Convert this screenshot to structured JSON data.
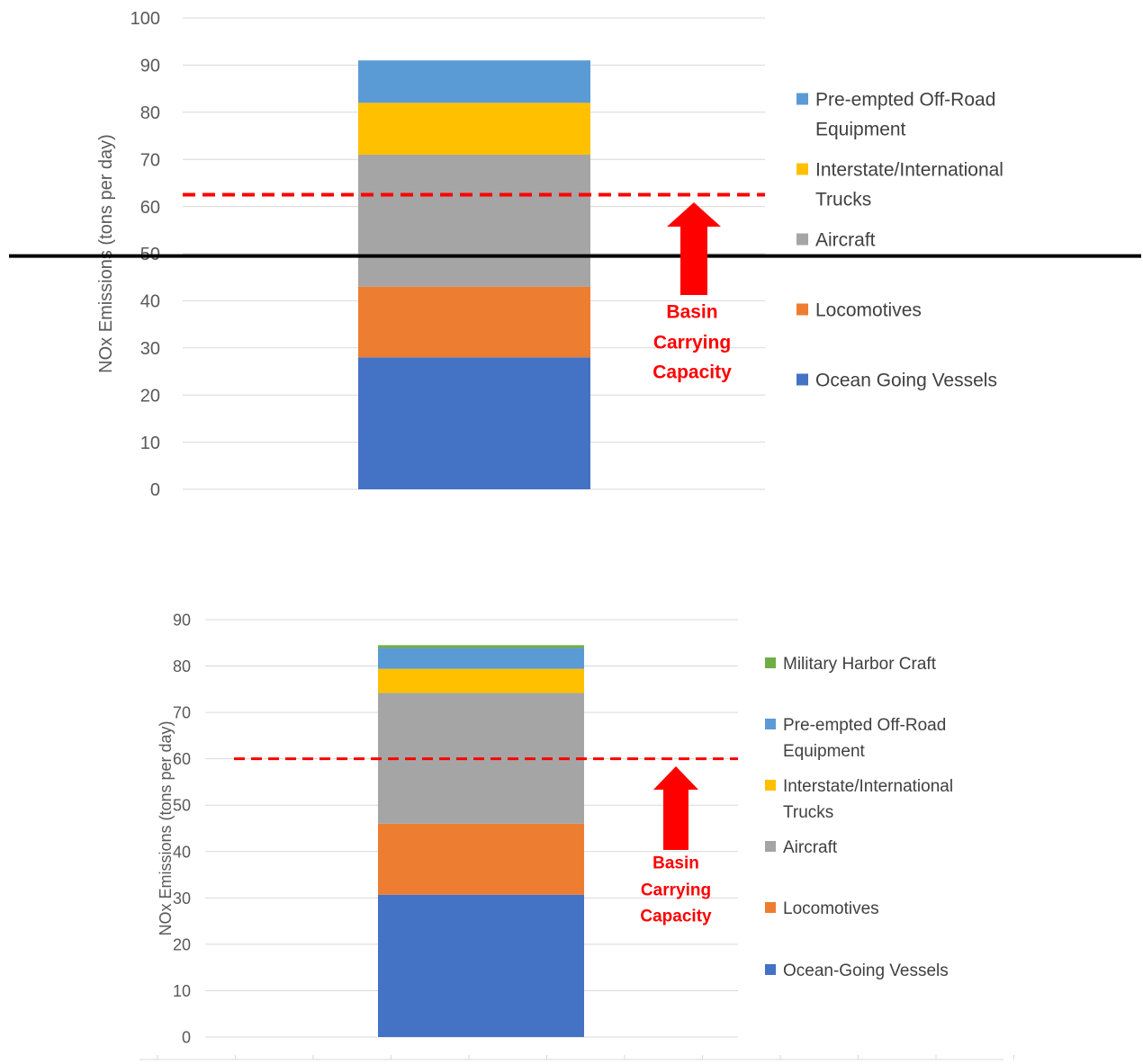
{
  "chart_data": [
    {
      "type": "bar",
      "stacked": true,
      "title": "",
      "xlabel": "",
      "ylabel": "NOx Emissions (tons per day)",
      "ylim": [
        0,
        100
      ],
      "yticks": [
        0,
        10,
        20,
        30,
        40,
        50,
        60,
        70,
        80,
        90,
        100
      ],
      "grid": true,
      "legend_position": "right",
      "series": [
        {
          "name": "Ocean Going Vessels",
          "value": 28,
          "color": "#4472c4"
        },
        {
          "name": "Locomotives",
          "value": 15,
          "color": "#ed7d31"
        },
        {
          "name": "Aircraft",
          "value": 28,
          "color": "#a5a5a5"
        },
        {
          "name": "Interstate/International Trucks",
          "value": 11,
          "color": "#ffc000"
        },
        {
          "name": "Pre-empted Off-Road Equipment",
          "value": 9,
          "color": "#5b9bd5"
        }
      ],
      "reference_line": {
        "value": 62.5,
        "style": "dashed",
        "color": "#ff0000"
      },
      "horizontal_line": {
        "value": 49.5,
        "color": "#000000"
      },
      "annotation": "Basin Carrying Capacity",
      "annotation_lines": [
        "Basin",
        "Carrying",
        "Capacity"
      ],
      "annotation_color": "#ff0000"
    },
    {
      "type": "bar",
      "stacked": true,
      "title": "",
      "xlabel": "",
      "ylabel": "NOx Emissions (tons per day)",
      "ylim": [
        0,
        90
      ],
      "yticks": [
        0,
        10,
        20,
        30,
        40,
        50,
        60,
        70,
        80,
        90
      ],
      "grid": true,
      "legend_position": "right",
      "series": [
        {
          "name": "Ocean-Going Vessels",
          "value": 30.7,
          "color": "#4472c4"
        },
        {
          "name": "Locomotives",
          "value": 15.3,
          "color": "#ed7d31"
        },
        {
          "name": "Aircraft",
          "value": 28.2,
          "color": "#a5a5a5"
        },
        {
          "name": "Interstate/International Trucks",
          "value": 5.2,
          "color": "#ffc000"
        },
        {
          "name": "Pre-empted Off-Road Equipment",
          "value": 4.5,
          "color": "#5b9bd5"
        },
        {
          "name": "Military Harbor Craft",
          "value": 0.6,
          "color": "#70ad47"
        }
      ],
      "reference_line": {
        "value": 60,
        "style": "dashed",
        "color": "#ff0000"
      },
      "annotation": "Basin Carrying Capacity",
      "annotation_lines": [
        "Basin",
        "Carrying",
        "Capacity"
      ],
      "annotation_color": "#ff0000"
    }
  ]
}
